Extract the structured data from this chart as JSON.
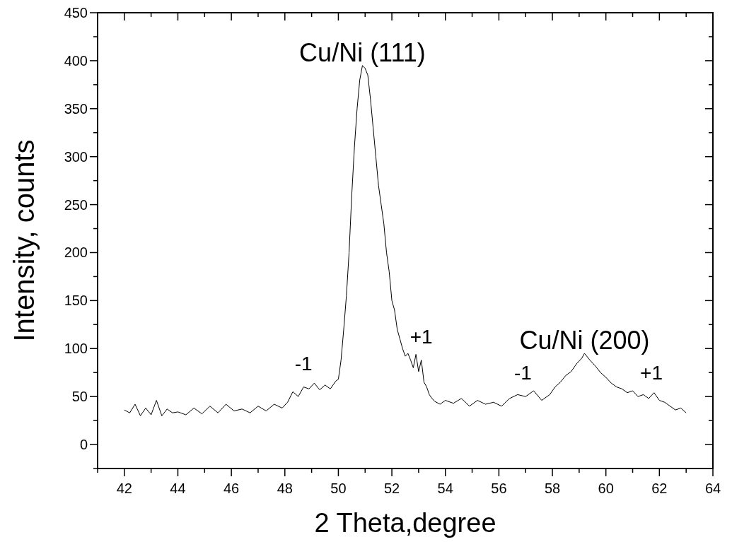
{
  "chart_data": {
    "type": "line",
    "xlabel": "2 Theta,degree",
    "ylabel": "Intensity, counts",
    "xlim": [
      41,
      64
    ],
    "ylim": [
      -25,
      450
    ],
    "xticks": [
      {
        "value": 41,
        "label": null
      },
      42,
      {
        "value": 43,
        "label": null
      },
      44,
      {
        "value": 45,
        "label": null
      },
      46,
      {
        "value": 47,
        "label": null
      },
      48,
      {
        "value": 49,
        "label": null
      },
      50,
      {
        "value": 51,
        "label": null
      },
      52,
      {
        "value": 53,
        "label": null
      },
      54,
      {
        "value": 55,
        "label": null
      },
      56,
      {
        "value": 57,
        "label": null
      },
      58,
      {
        "value": 59,
        "label": null
      },
      60,
      {
        "value": 61,
        "label": null
      },
      62,
      {
        "value": 63,
        "label": null
      },
      64
    ],
    "yticks": [
      {
        "value": -25,
        "label": null
      },
      0,
      {
        "value": 25,
        "label": null
      },
      50,
      {
        "value": 75,
        "label": null
      },
      100,
      {
        "value": 125,
        "label": null
      },
      150,
      {
        "value": 175,
        "label": null
      },
      200,
      {
        "value": 225,
        "label": null
      },
      250,
      {
        "value": 275,
        "label": null
      },
      300,
      {
        "value": 325,
        "label": null
      },
      350,
      {
        "value": 375,
        "label": null
      },
      400,
      {
        "value": 425,
        "label": null
      },
      450
    ],
    "grid": false,
    "marker": "none",
    "line_style": "solid",
    "series": [
      {
        "color": "#000000",
        "x": [
          42,
          42.2,
          42.4,
          42.6,
          42.8,
          43,
          43.2,
          43.4,
          43.6,
          43.8,
          44,
          44.3,
          44.6,
          44.9,
          45.2,
          45.5,
          45.8,
          46.1,
          46.4,
          46.7,
          47,
          47.3,
          47.6,
          47.9,
          48.1,
          48.3,
          48.5,
          48.7,
          48.9,
          49.1,
          49.3,
          49.5,
          49.7,
          49.9,
          50,
          50.1,
          50.2,
          50.3,
          50.4,
          50.5,
          50.6,
          50.7,
          50.8,
          50.9,
          51,
          51.1,
          51.2,
          51.3,
          51.4,
          51.5,
          51.6,
          51.7,
          51.8,
          51.9,
          52,
          52.1,
          52.2,
          52.3,
          52.4,
          52.5,
          52.6,
          52.7,
          52.8,
          52.9,
          53,
          53.1,
          53.2,
          53.3,
          53.4,
          53.5,
          53.6,
          53.8,
          54,
          54.3,
          54.6,
          54.9,
          55.2,
          55.5,
          55.8,
          56.1,
          56.4,
          56.7,
          57,
          57.3,
          57.6,
          57.9,
          58.1,
          58.3,
          58.5,
          58.7,
          58.9,
          59.1,
          59.2,
          59.4,
          59.6,
          59.8,
          60,
          60.2,
          60.4,
          60.6,
          60.8,
          61,
          61.2,
          61.4,
          61.6,
          61.8,
          62,
          62.2,
          62.4,
          62.6,
          62.8,
          63
        ],
        "values": [
          36,
          33,
          42,
          30,
          38,
          31,
          46,
          30,
          37,
          33,
          34,
          31,
          38,
          32,
          40,
          33,
          42,
          35,
          37,
          33,
          40,
          35,
          42,
          38,
          44,
          55,
          50,
          60,
          58,
          64,
          57,
          62,
          58,
          66,
          68,
          88,
          120,
          155,
          200,
          260,
          310,
          350,
          380,
          395,
          392,
          385,
          360,
          330,
          300,
          270,
          250,
          230,
          200,
          180,
          150,
          140,
          120,
          110,
          100,
          92,
          95,
          88,
          80,
          94,
          76,
          88,
          65,
          60,
          52,
          48,
          45,
          42,
          46,
          43,
          48,
          40,
          46,
          42,
          44,
          40,
          48,
          52,
          50,
          56,
          46,
          52,
          60,
          65,
          72,
          76,
          84,
          90,
          95,
          88,
          82,
          75,
          70,
          64,
          60,
          58,
          54,
          56,
          50,
          52,
          48,
          54,
          46,
          44,
          40,
          36,
          38,
          33
        ]
      }
    ],
    "annotations": [
      {
        "text": "Cu/Ni (111)",
        "x": 50.9,
        "y": 395
      },
      {
        "text": "-1",
        "x": 48.7,
        "y": 60
      },
      {
        "text": "+1",
        "x": 53.1,
        "y": 88
      },
      {
        "text": "Cu/Ni (200)",
        "x": 59.2,
        "y": 95
      },
      {
        "text": "-1",
        "x": 56.9,
        "y": 50
      },
      {
        "text": "+1",
        "x": 61.7,
        "y": 50
      }
    ]
  }
}
